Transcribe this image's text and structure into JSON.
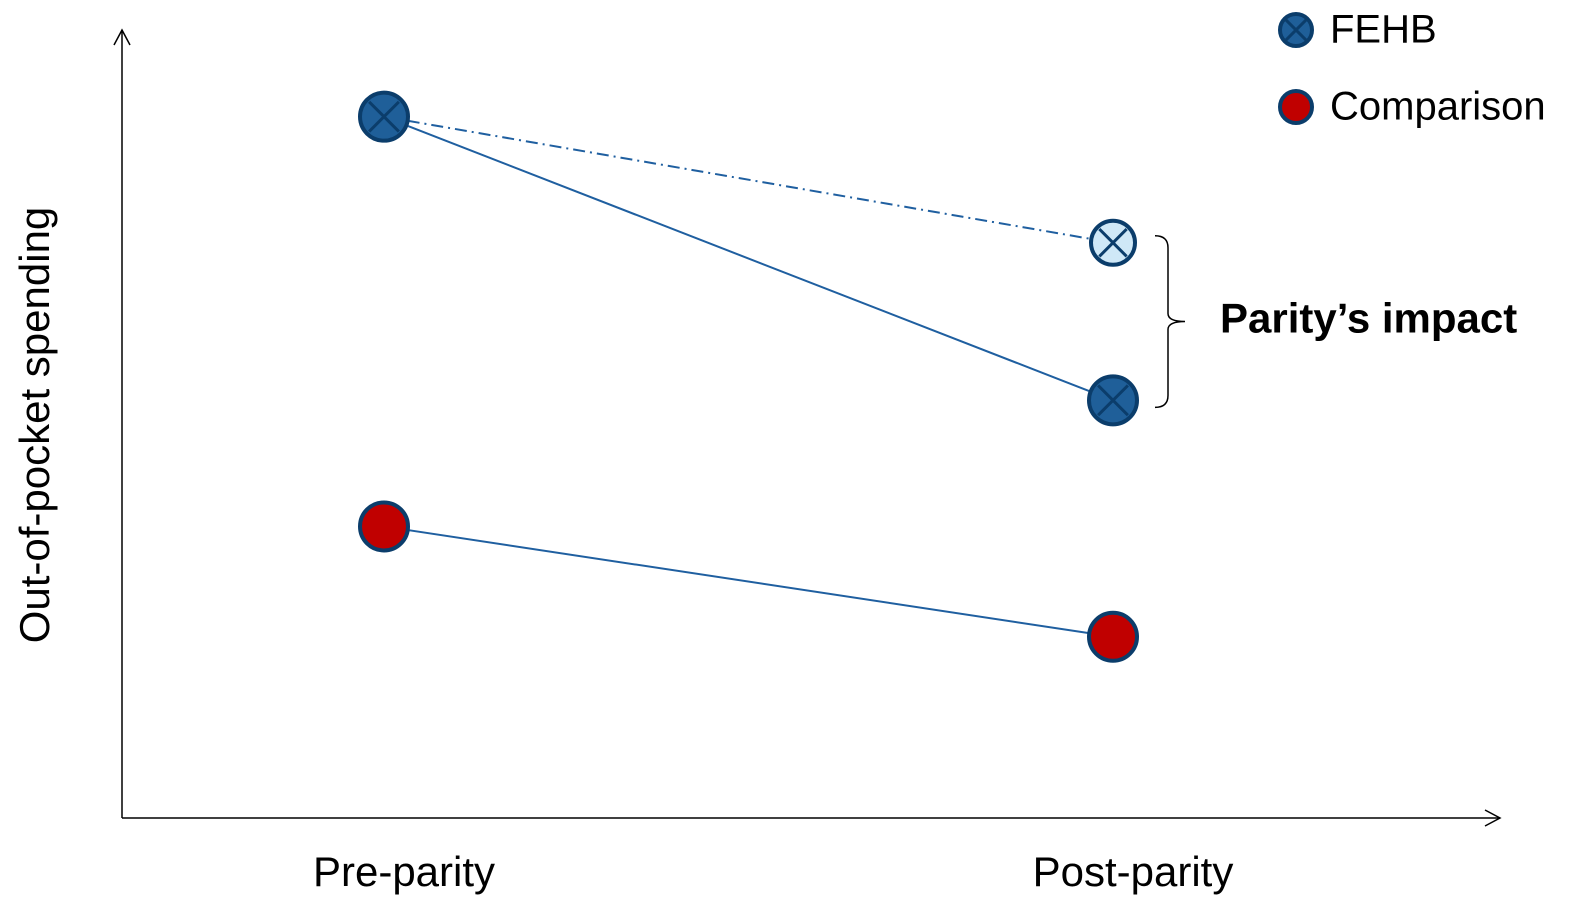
{
  "chart_data": {
    "type": "slope",
    "y_label": "Out-of-pocket spending",
    "categories": [
      "Pre-parity",
      "Post-parity"
    ],
    "ylim": [
      0,
      100
    ],
    "series": [
      {
        "name": "FEHB",
        "color": "#1f5f99",
        "marker": "cross",
        "values": [
          89,
          53
        ]
      },
      {
        "name": "Comparison",
        "color": "#c00000",
        "marker": "dot",
        "values": [
          37,
          23
        ]
      }
    ],
    "projection": {
      "color": "#cfe8f7",
      "values": [
        89,
        73
      ]
    },
    "annotation": "Parity’s impact"
  }
}
